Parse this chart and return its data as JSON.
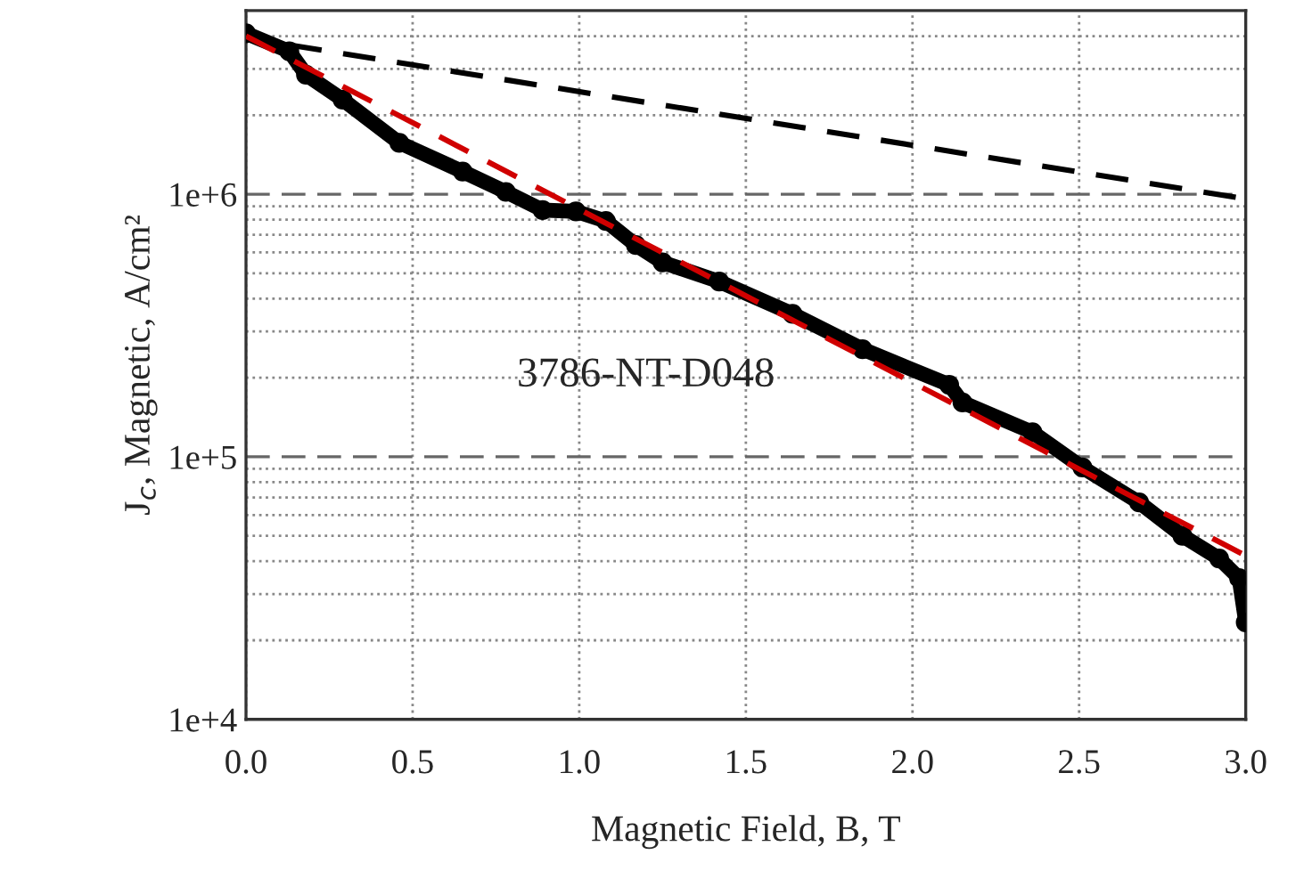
{
  "chart_data": {
    "type": "line",
    "xlabel": "Magnetic Field, B, T",
    "ylabel": "J$_{c}$, Magnetic, A/cm²",
    "annotations": [
      "3786-NT-D048"
    ],
    "series": [
      {
        "color": "#000000",
        "marker": "circle",
        "line_style": "solid",
        "x": [
          0,
          0.13,
          0.18,
          0.29,
          0.46,
          0.65,
          0.78,
          0.89,
          0.99,
          1.08,
          1.17,
          1.25,
          1.42,
          1.64,
          1.85,
          2.11,
          2.15,
          2.36,
          2.51,
          2.68,
          2.81,
          2.92,
          2.98,
          3.0
        ],
        "values": [
          4100000,
          3500000,
          2850000,
          2290000,
          1570000,
          1220000,
          1020000,
          870000,
          860000,
          790000,
          640000,
          550000,
          465000,
          350000,
          257000,
          188000,
          161000,
          124000,
          91000,
          67000,
          50000,
          41000,
          34500,
          23400
        ]
      },
      {
        "color": "#000000",
        "marker": "none",
        "line_style": "dashed",
        "x": [
          0.13,
          3.0
        ],
        "values": [
          3700000,
          960000
        ]
      },
      {
        "color": "#d00000",
        "marker": "none",
        "line_style": "dashed",
        "x": [
          0,
          3.0
        ],
        "values": [
          4000000,
          42000
        ]
      }
    ],
    "log": "y",
    "xlim": [
      0,
      3.0
    ],
    "ylim": [
      10000,
      5000000
    ],
    "xticks": [
      "0.0",
      0.5,
      "1.0",
      1.5,
      "2.0",
      2.5,
      "3.0"
    ],
    "yticks": [
      {
        "value": 10000,
        "label": "1e+4"
      },
      {
        "value": 100000,
        "label": "1e+5"
      },
      {
        "value": 1000000,
        "label": "1e+6"
      }
    ],
    "grid": true,
    "legend": false
  }
}
